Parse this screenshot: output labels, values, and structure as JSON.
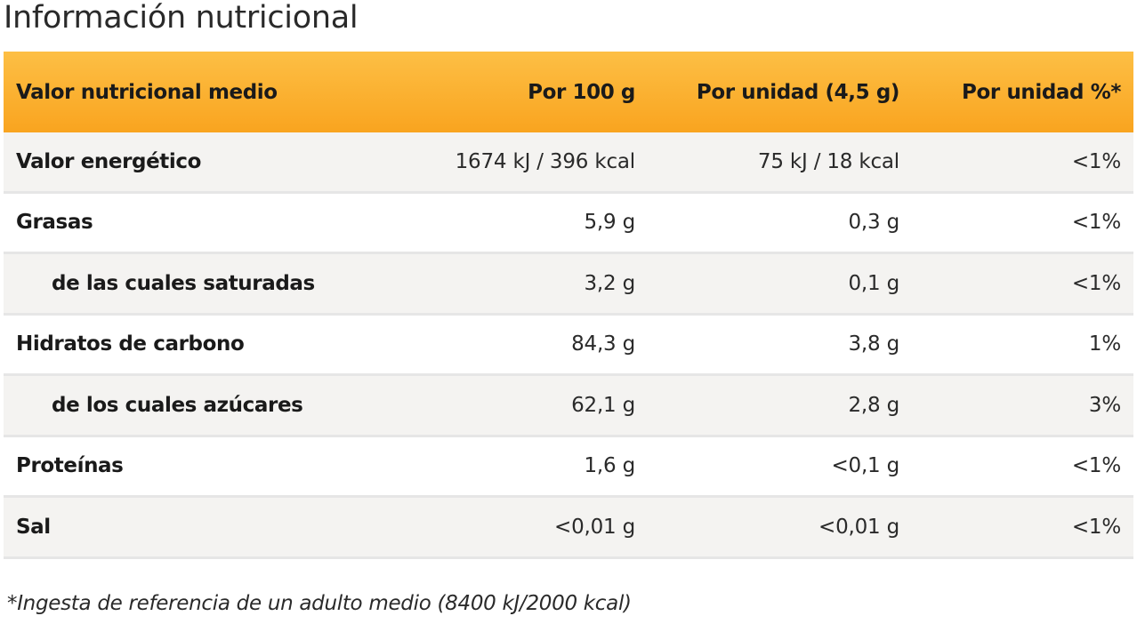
{
  "page": {
    "title": "Información nutricional",
    "footnote": "*Ingesta de referencia de un adulto medio (8400 kJ/2000 kcal)"
  },
  "table": {
    "headers": [
      "Valor nutricional medio",
      "Por 100 g",
      "Por unidad (4,5 g)",
      "Por unidad %*"
    ],
    "rows": [
      {
        "label": "Valor energético",
        "per100": "1674 kJ / 396 kcal",
        "perUnit": "75 kJ / 18 kcal",
        "percent": "<1%"
      },
      {
        "label": "Grasas",
        "per100": "5,9 g",
        "perUnit": "0,3 g",
        "percent": "<1%"
      },
      {
        "label": "de las cuales saturadas",
        "per100": "3,2 g",
        "perUnit": "0,1 g",
        "percent": "<1%"
      },
      {
        "label": "Hidratos de carbono",
        "per100": "84,3 g",
        "perUnit": "3,8 g",
        "percent": "1%"
      },
      {
        "label": "de los cuales azúcares",
        "per100": "62,1 g",
        "perUnit": "2,8 g",
        "percent": "3%"
      },
      {
        "label": "Proteínas",
        "per100": "1,6 g",
        "perUnit": "<0,1 g",
        "percent": "<1%"
      },
      {
        "label": "Sal",
        "per100": "<0,01 g",
        "perUnit": "<0,01 g",
        "percent": "<1%"
      }
    ]
  },
  "colors": {
    "header_top": "#fdbf45",
    "header_bottom": "#f9a41f",
    "row_shaded": "#f4f3f1"
  }
}
